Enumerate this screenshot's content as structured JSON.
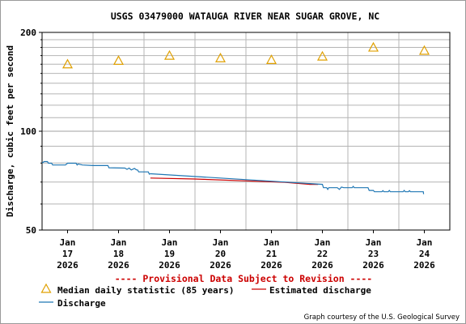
{
  "chart_data": {
    "type": "line",
    "title": "USGS 03479000 WATAUGA RIVER NEAR SUGAR GROVE, NC",
    "ylabel": "Discharge, cubic feet per second",
    "yscale": "log",
    "ylim": [
      50,
      200
    ],
    "yticks": [
      50,
      100,
      200
    ],
    "xlim": [
      "2026-01-16T12:00",
      "2026-01-24T12:00"
    ],
    "xticks": [
      {
        "date": "2026-01-17",
        "month": "Jan",
        "day": "17",
        "year": "2026"
      },
      {
        "date": "2026-01-18",
        "month": "Jan",
        "day": "18",
        "year": "2026"
      },
      {
        "date": "2026-01-19",
        "month": "Jan",
        "day": "19",
        "year": "2026"
      },
      {
        "date": "2026-01-20",
        "month": "Jan",
        "day": "20",
        "year": "2026"
      },
      {
        "date": "2026-01-21",
        "month": "Jan",
        "day": "21",
        "year": "2026"
      },
      {
        "date": "2026-01-22",
        "month": "Jan",
        "day": "22",
        "year": "2026"
      },
      {
        "date": "2026-01-23",
        "month": "Jan",
        "day": "23",
        "year": "2026"
      },
      {
        "date": "2026-01-24",
        "month": "Jan",
        "day": "24",
        "year": "2026"
      }
    ],
    "grid": true,
    "legend_position": "bottom",
    "series": [
      {
        "name": "Median daily statistic (85 years)",
        "kind": "marker-triangle",
        "color": "#e0a000",
        "points": [
          {
            "x": "2026-01-17T00:00",
            "y": 160
          },
          {
            "x": "2026-01-18T00:00",
            "y": 164
          },
          {
            "x": "2026-01-19T00:00",
            "y": 170
          },
          {
            "x": "2026-01-20T00:00",
            "y": 167
          },
          {
            "x": "2026-01-21T00:00",
            "y": 165
          },
          {
            "x": "2026-01-22T00:00",
            "y": 169
          },
          {
            "x": "2026-01-23T00:00",
            "y": 180
          },
          {
            "x": "2026-01-24T00:00",
            "y": 176
          }
        ]
      },
      {
        "name": "Estimated discharge",
        "kind": "line",
        "color": "#cc0000",
        "points": [
          {
            "x": "2026-01-18T15:00",
            "y": 72
          },
          {
            "x": "2026-01-19T12:00",
            "y": 71.5
          },
          {
            "x": "2026-01-20T12:00",
            "y": 70.6
          },
          {
            "x": "2026-01-21T06:00",
            "y": 69.9
          },
          {
            "x": "2026-01-21T18:00",
            "y": 68.9
          },
          {
            "x": "2026-01-21T22:00",
            "y": 68.9
          }
        ]
      },
      {
        "name": "Discharge",
        "kind": "line",
        "color": "#1f77b4",
        "points": [
          {
            "x": "2026-01-16T12:00",
            "y": 80
          },
          {
            "x": "2026-01-16T13:00",
            "y": 80.8
          },
          {
            "x": "2026-01-16T14:30",
            "y": 80.8
          },
          {
            "x": "2026-01-16T15:00",
            "y": 79.9
          },
          {
            "x": "2026-01-16T16:30",
            "y": 79.9
          },
          {
            "x": "2026-01-16T17:00",
            "y": 78.9
          },
          {
            "x": "2026-01-16T23:00",
            "y": 78.9
          },
          {
            "x": "2026-01-17T00:00",
            "y": 79.9
          },
          {
            "x": "2026-01-17T04:00",
            "y": 79.9
          },
          {
            "x": "2026-01-17T04:30",
            "y": 78.9
          },
          {
            "x": "2026-01-17T05:00",
            "y": 79.5
          },
          {
            "x": "2026-01-17T07:00",
            "y": 78.9
          },
          {
            "x": "2026-01-17T12:00",
            "y": 78.6
          },
          {
            "x": "2026-01-17T19:00",
            "y": 78.6
          },
          {
            "x": "2026-01-17T19:30",
            "y": 77.4
          },
          {
            "x": "2026-01-18T03:00",
            "y": 77.2
          },
          {
            "x": "2026-01-18T04:00",
            "y": 76.5
          },
          {
            "x": "2026-01-18T05:00",
            "y": 77.2
          },
          {
            "x": "2026-01-18T06:00",
            "y": 76.2
          },
          {
            "x": "2026-01-18T07:30",
            "y": 77
          },
          {
            "x": "2026-01-18T08:30",
            "y": 76.2
          },
          {
            "x": "2026-01-18T09:00",
            "y": 76.2
          },
          {
            "x": "2026-01-18T09:30",
            "y": 75.2
          },
          {
            "x": "2026-01-18T14:00",
            "y": 75.2
          },
          {
            "x": "2026-01-18T14:30",
            "y": 74
          },
          {
            "x": "2026-01-18T15:00",
            "y": 74.2
          },
          {
            "x": "2026-01-22T00:00",
            "y": 68.9
          },
          {
            "x": "2026-01-22T00:30",
            "y": 67.3
          },
          {
            "x": "2026-01-22T02:00",
            "y": 67.3
          },
          {
            "x": "2026-01-22T02:30",
            "y": 66.5
          },
          {
            "x": "2026-01-22T03:00",
            "y": 67.3
          },
          {
            "x": "2026-01-22T07:00",
            "y": 67.3
          },
          {
            "x": "2026-01-22T08:00",
            "y": 66.5
          },
          {
            "x": "2026-01-22T09:00",
            "y": 67.6
          },
          {
            "x": "2026-01-22T10:00",
            "y": 67.3
          },
          {
            "x": "2026-01-22T14:00",
            "y": 67.3
          },
          {
            "x": "2026-01-22T14:30",
            "y": 67.9
          },
          {
            "x": "2026-01-22T15:00",
            "y": 67.3
          },
          {
            "x": "2026-01-22T21:30",
            "y": 67.3
          },
          {
            "x": "2026-01-22T22:00",
            "y": 66
          },
          {
            "x": "2026-01-23T00:00",
            "y": 66
          },
          {
            "x": "2026-01-23T00:30",
            "y": 65.4
          },
          {
            "x": "2026-01-23T04:00",
            "y": 65.4
          },
          {
            "x": "2026-01-23T04:30",
            "y": 65.9
          },
          {
            "x": "2026-01-23T05:00",
            "y": 65.4
          },
          {
            "x": "2026-01-23T07:00",
            "y": 65.4
          },
          {
            "x": "2026-01-23T07:30",
            "y": 66
          },
          {
            "x": "2026-01-23T08:00",
            "y": 65.4
          },
          {
            "x": "2026-01-23T14:00",
            "y": 65.4
          },
          {
            "x": "2026-01-23T14:30",
            "y": 66
          },
          {
            "x": "2026-01-23T15:00",
            "y": 65.4
          },
          {
            "x": "2026-01-23T16:30",
            "y": 65.4
          },
          {
            "x": "2026-01-23T17:00",
            "y": 65.9
          },
          {
            "x": "2026-01-23T17:30",
            "y": 65.4
          },
          {
            "x": "2026-01-23T23:30",
            "y": 65.4
          },
          {
            "x": "2026-01-23T23:40",
            "y": 64.3
          }
        ]
      }
    ],
    "annotations": {
      "provisional": "---- Provisional Data Subject to Revision ----",
      "credit": "Graph courtesy of the U.S. Geological Survey"
    }
  },
  "colors": {
    "grid": "#b4b4b4",
    "axis": "#000000",
    "provisional": "#cc0000"
  }
}
